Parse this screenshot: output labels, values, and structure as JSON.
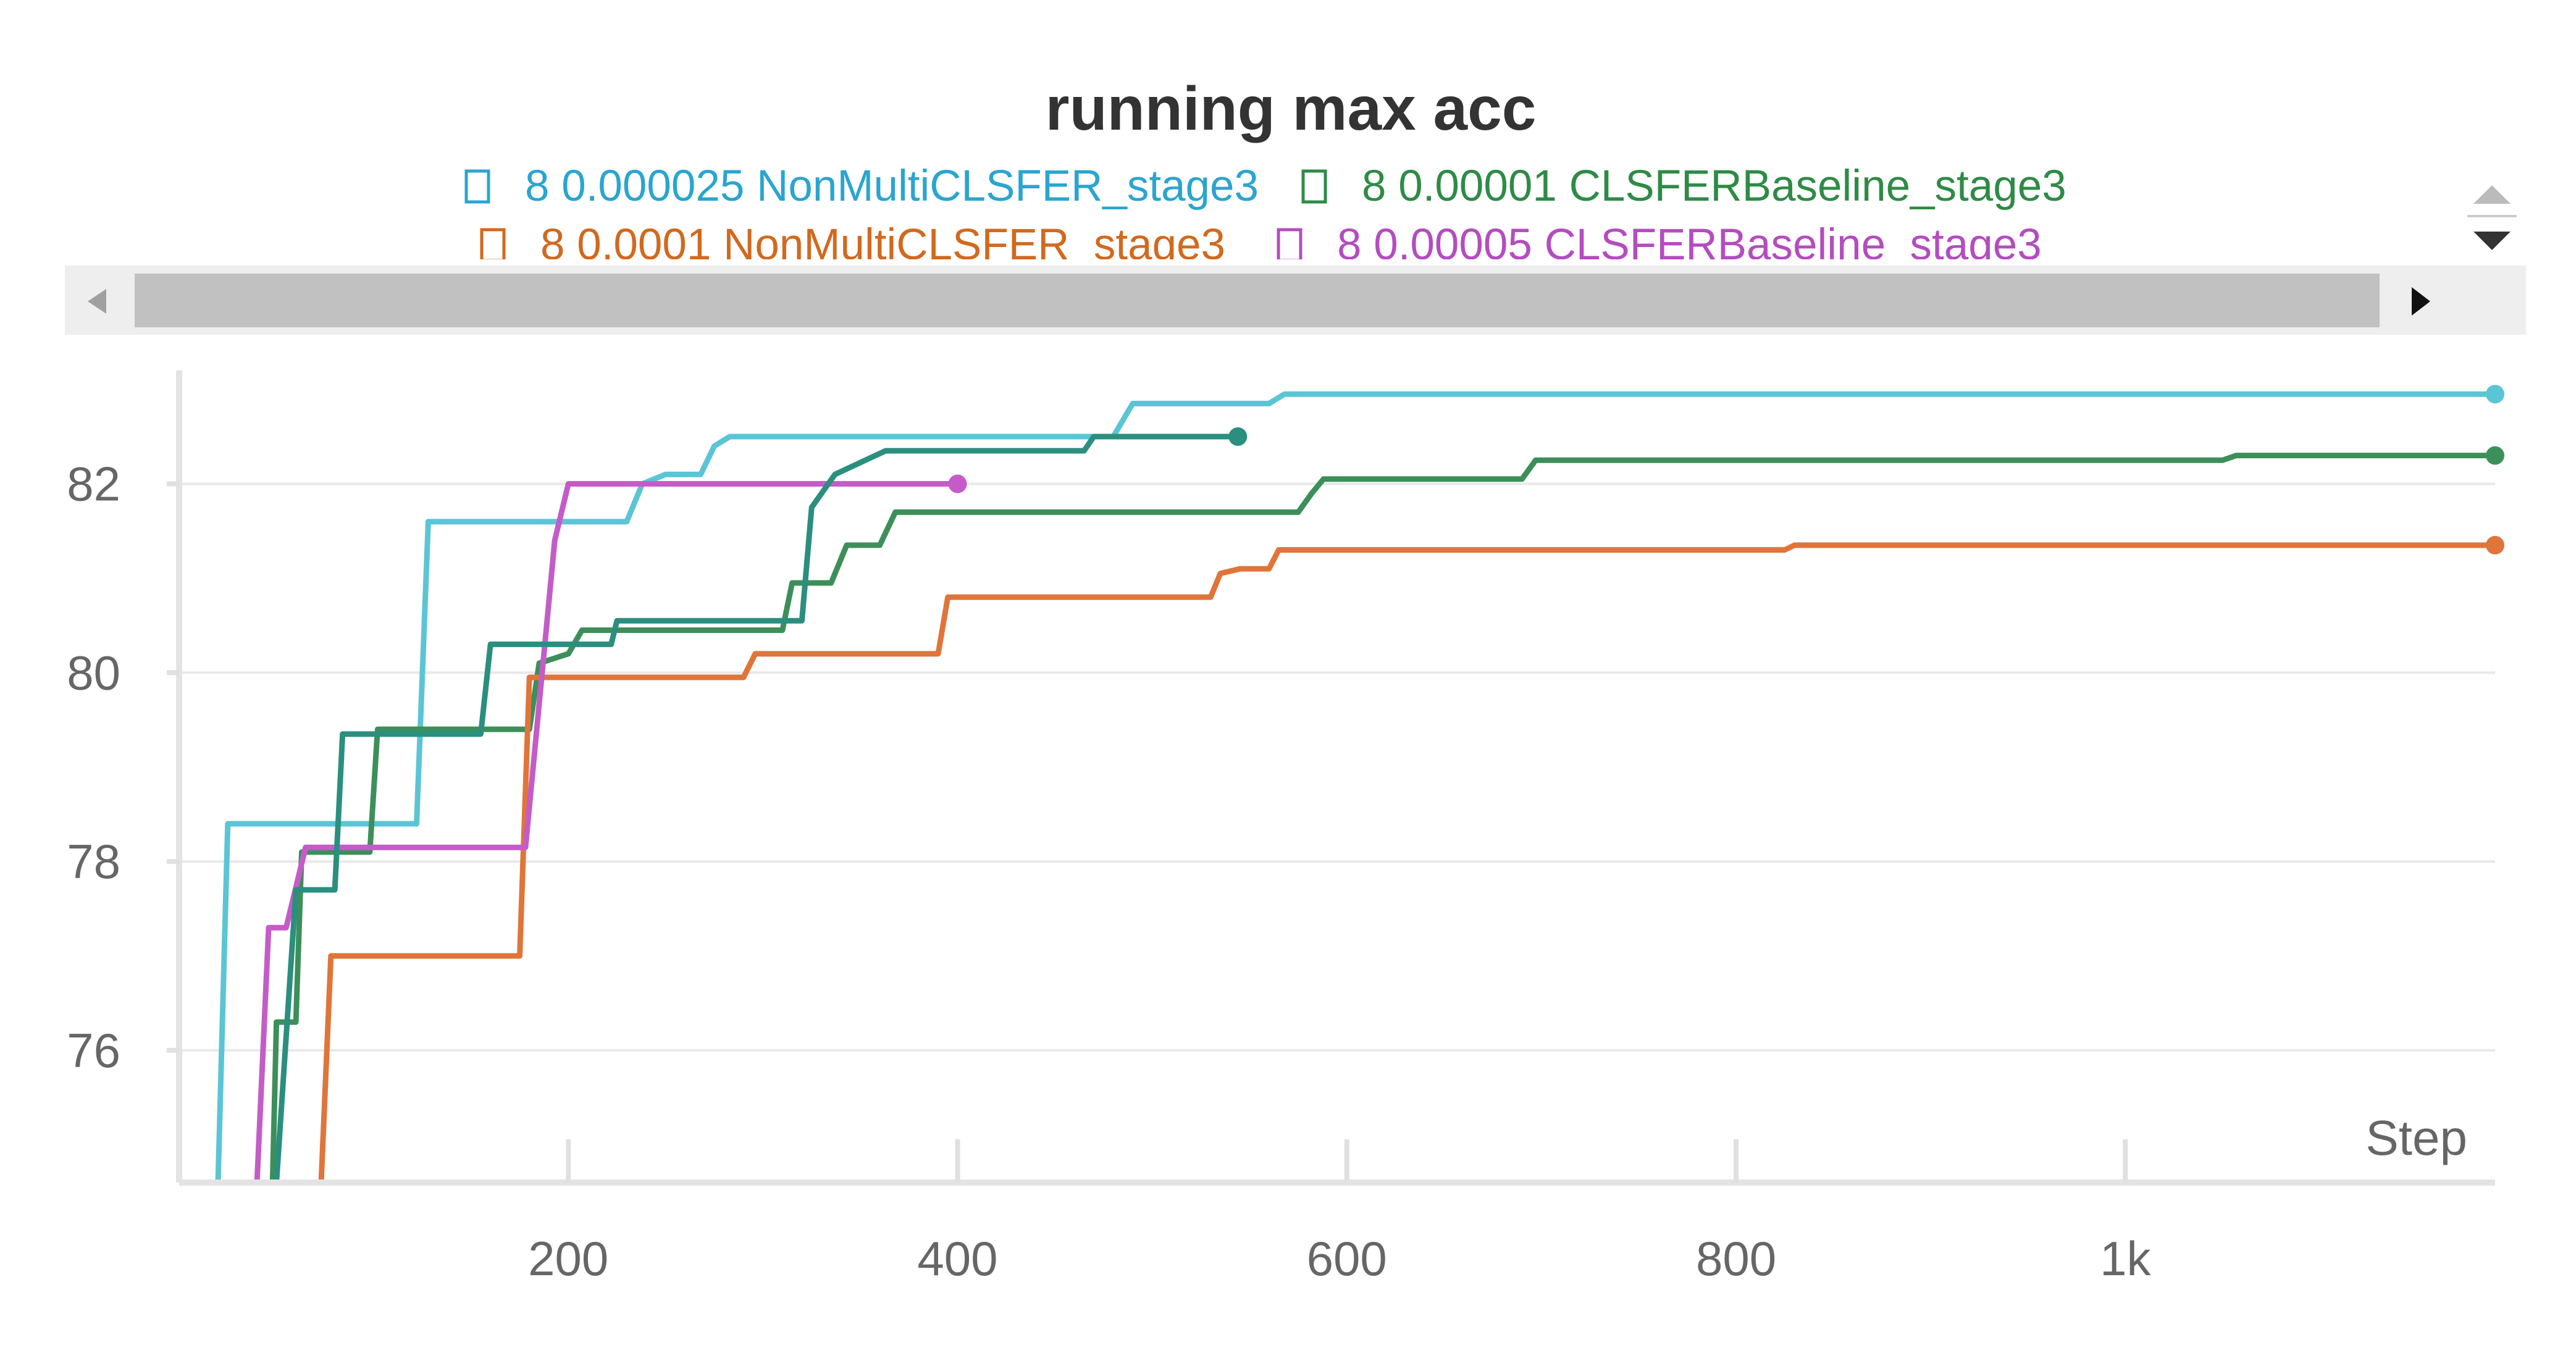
{
  "chart_data": {
    "type": "line",
    "title": "running max acc",
    "xlabel": "Step",
    "ylabel": "",
    "xlim": [
      0,
      1190
    ],
    "ylim": [
      74.6,
      83.2
    ],
    "x_ticks": [
      200,
      400,
      600,
      800,
      1000
    ],
    "x_tick_labels": [
      "200",
      "400",
      "600",
      "800",
      "1k"
    ],
    "y_ticks": [
      76,
      78,
      80,
      82
    ],
    "y_tick_labels": [
      "76",
      "78",
      "80",
      "82"
    ],
    "grid": true,
    "legend_position": "top",
    "series": [
      {
        "name": "8 0.000025 NonMultiCLSFER_stage3",
        "color": "#5bc5d5",
        "legend_color": "#2aa5d0",
        "points": [
          [
            20,
            74.6
          ],
          [
            25,
            78.4
          ],
          [
            122,
            78.4
          ],
          [
            128,
            81.6
          ],
          [
            230,
            81.6
          ],
          [
            238,
            82.0
          ],
          [
            250,
            82.1
          ],
          [
            268,
            82.1
          ],
          [
            275,
            82.4
          ],
          [
            283,
            82.5
          ],
          [
            480,
            82.5
          ],
          [
            490,
            82.85
          ],
          [
            560,
            82.85
          ],
          [
            568,
            82.95
          ],
          [
            1190,
            82.95
          ]
        ]
      },
      {
        "name": "8 0.00001 CLSFERBaseline_stage3",
        "color": "#3d8f5a",
        "legend_color": "#2e8b46",
        "points": [
          [
            48,
            74.6
          ],
          [
            50,
            76.3
          ],
          [
            60,
            76.3
          ],
          [
            63,
            78.1
          ],
          [
            98,
            78.1
          ],
          [
            102,
            79.4
          ],
          [
            180,
            79.4
          ],
          [
            185,
            80.1
          ],
          [
            200,
            80.2
          ],
          [
            207,
            80.45
          ],
          [
            310,
            80.45
          ],
          [
            315,
            80.95
          ],
          [
            335,
            80.95
          ],
          [
            343,
            81.35
          ],
          [
            360,
            81.35
          ],
          [
            368,
            81.7
          ],
          [
            575,
            81.7
          ],
          [
            582,
            81.9
          ],
          [
            588,
            82.05
          ],
          [
            690,
            82.05
          ],
          [
            697,
            82.25
          ],
          [
            1050,
            82.25
          ],
          [
            1057,
            82.3
          ],
          [
            1190,
            82.3
          ]
        ]
      },
      {
        "name": "8 0.0001 NonMultiCLSFER_stage3",
        "color": "#e0753a",
        "legend_color": "#d2691e",
        "points": [
          [
            73,
            74.6
          ],
          [
            78,
            77.0
          ],
          [
            175,
            77.0
          ],
          [
            180,
            79.95
          ],
          [
            290,
            79.95
          ],
          [
            296,
            80.2
          ],
          [
            390,
            80.2
          ],
          [
            395,
            80.8
          ],
          [
            530,
            80.8
          ],
          [
            535,
            81.05
          ],
          [
            545,
            81.1
          ],
          [
            560,
            81.1
          ],
          [
            565,
            81.3
          ],
          [
            825,
            81.3
          ],
          [
            830,
            81.35
          ],
          [
            1190,
            81.35
          ]
        ]
      },
      {
        "name": "8 0.00005 CLSFERBaseline_stage3",
        "color": "#c45cc8",
        "legend_color": "#b44cc0",
        "points": [
          [
            40,
            74.6
          ],
          [
            46,
            77.3
          ],
          [
            55,
            77.3
          ],
          [
            65,
            78.15
          ],
          [
            178,
            78.15
          ],
          [
            193,
            81.4
          ],
          [
            200,
            82.0
          ],
          [
            400,
            82.0
          ]
        ]
      },
      {
        "name": "",
        "color": "#2a8f7e",
        "legend_color": "#2a8f7e",
        "points": [
          [
            50,
            74.6
          ],
          [
            60,
            77.7
          ],
          [
            80,
            77.7
          ],
          [
            84,
            79.35
          ],
          [
            155,
            79.35
          ],
          [
            160,
            80.3
          ],
          [
            222,
            80.3
          ],
          [
            225,
            80.55
          ],
          [
            320,
            80.55
          ],
          [
            325,
            81.75
          ],
          [
            337,
            82.1
          ],
          [
            363,
            82.35
          ],
          [
            465,
            82.35
          ],
          [
            470,
            82.5
          ],
          [
            544,
            82.5
          ]
        ]
      }
    ]
  }
}
